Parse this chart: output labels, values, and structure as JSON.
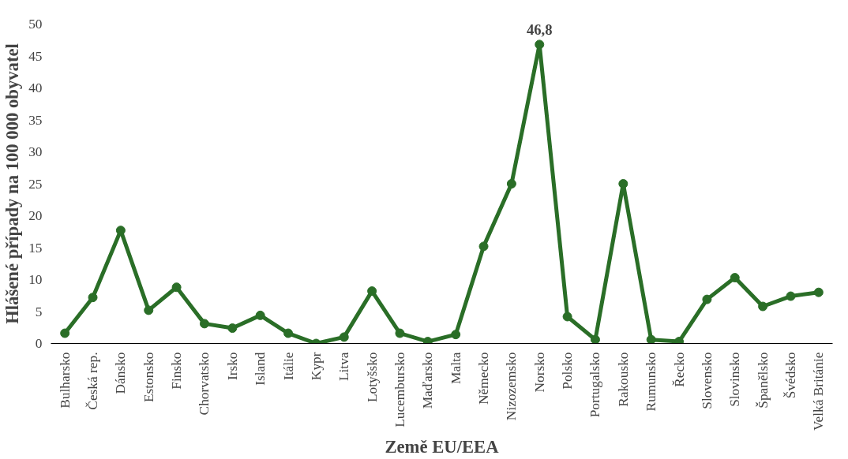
{
  "chart_data": {
    "type": "line",
    "xlabel": "Země EU/EEA",
    "ylabel": "Hlášené případy na 100 000 obyvatel",
    "categories": [
      "Bulharsko",
      "Česká rep.",
      "Dánsko",
      "Estonsko",
      "Finsko",
      "Chorvatsko",
      "Irsko",
      "Island",
      "Itálie",
      "Kypr",
      "Litva",
      "Lotyšsko",
      "Lucembursko",
      "Maďarsko",
      "Malta",
      "Německo",
      "Nizozemsko",
      "Norsko",
      "Polsko",
      "Portugalsko",
      "Rakousko",
      "Rumunsko",
      "Řecko",
      "Slovensko",
      "Slovinsko",
      "Španělsko",
      "Švédsko",
      "Velká Británie"
    ],
    "series": [
      {
        "color": "#2a6e27",
        "values": [
          1.6,
          7.2,
          17.7,
          5.2,
          8.8,
          3.1,
          2.4,
          4.4,
          1.6,
          0,
          1.0,
          8.2,
          1.6,
          0.3,
          1.4,
          15.2,
          25.0,
          46.8,
          4.2,
          0.6,
          25.0,
          0.6,
          0.3,
          6.9,
          10.3,
          5.8,
          7.4,
          8.0
        ],
        "value_labels": [
          null,
          null,
          null,
          null,
          null,
          null,
          null,
          null,
          null,
          null,
          null,
          null,
          null,
          null,
          null,
          null,
          null,
          "46,8",
          null,
          null,
          null,
          null,
          null,
          null,
          null,
          null,
          null,
          null
        ]
      }
    ],
    "ylim": [
      0,
      50
    ],
    "yticks": [
      0,
      5,
      10,
      15,
      20,
      25,
      30,
      35,
      40,
      45,
      50
    ],
    "grid": false,
    "marker": "circle",
    "line_style": "solid"
  }
}
